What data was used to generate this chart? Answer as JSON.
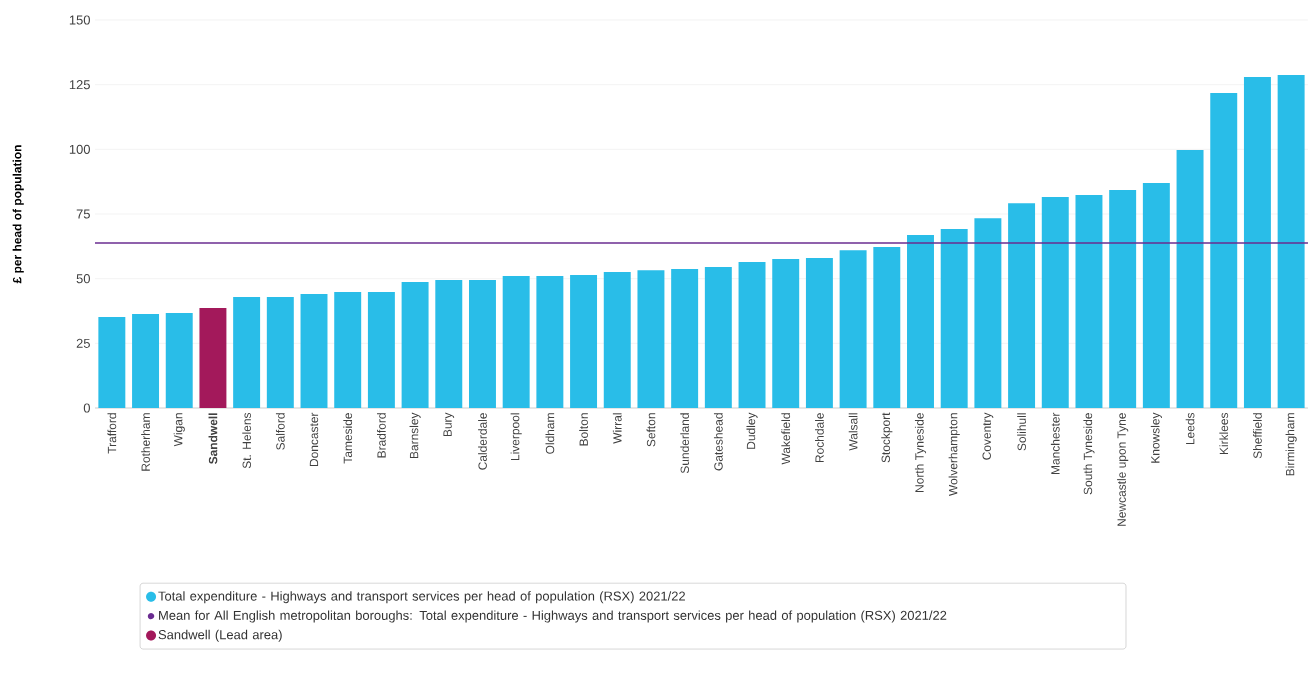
{
  "chart_data": {
    "type": "bar",
    "ylabel": "£ per head of population",
    "categories": [
      "Trafford",
      "Rotherham",
      "Wigan",
      "**Sandwell**",
      "St. Helens",
      "Salford",
      "Doncaster",
      "Tameside",
      "Bradford",
      "Barnsley",
      "Bury",
      "Calderdale",
      "Liverpool",
      "Oldham",
      "Bolton",
      "Wirral",
      "Sefton",
      "Sunderland",
      "Gateshead",
      "Dudley",
      "Wakefield",
      "Rochdale",
      "Walsall",
      "Stockport",
      "North Tyneside",
      "Wolverhampton",
      "Coventry",
      "Solihull",
      "Manchester",
      "South Tyneside",
      "Newcastle upon Tyne",
      "Knowsley",
      "Leeds",
      "Kirklees",
      "Sheffield",
      "Birmingham"
    ],
    "series": [
      {
        "name": "Total expenditure - Highways and transport services per head of population (RSX) 2021/22",
        "color": "#29bde8",
        "values": [
          35.2,
          36.3,
          36.7,
          null,
          42.9,
          42.9,
          44.1,
          44.8,
          44.8,
          48.7,
          49.5,
          49.5,
          51,
          51,
          51.4,
          52.6,
          53.3,
          53.7,
          54.5,
          56.4,
          57.6,
          58,
          61,
          62.2,
          66.9,
          69.2,
          73.4,
          79.2,
          81.6,
          82.3,
          84.3,
          87,
          99.7,
          121.8,
          128,
          128.7
        ]
      },
      {
        "name": "Sandwell (Lead area)",
        "color": "#a3195b",
        "values": [
          null,
          null,
          null,
          38.7,
          null,
          null,
          null,
          null,
          null,
          null,
          null,
          null,
          null,
          null,
          null,
          null,
          null,
          null,
          null,
          null,
          null,
          null,
          null,
          null,
          null,
          null,
          null,
          null,
          null,
          null,
          null,
          null,
          null,
          null,
          null,
          null
        ]
      }
    ],
    "stacked": true,
    "ylim": [
      0,
      150
    ],
    "yticks": [
      0,
      25,
      50,
      75,
      100,
      125,
      150
    ],
    "grid": "y",
    "legend": "bottom",
    "ref_lines": [
      {
        "axis": "y",
        "value": 63.8,
        "color": "#6a2c91",
        "label": "Mean for All English metropolitan boroughs: Total expenditure - Highways and transport services per head of population (RSX) 2021/22"
      }
    ]
  }
}
